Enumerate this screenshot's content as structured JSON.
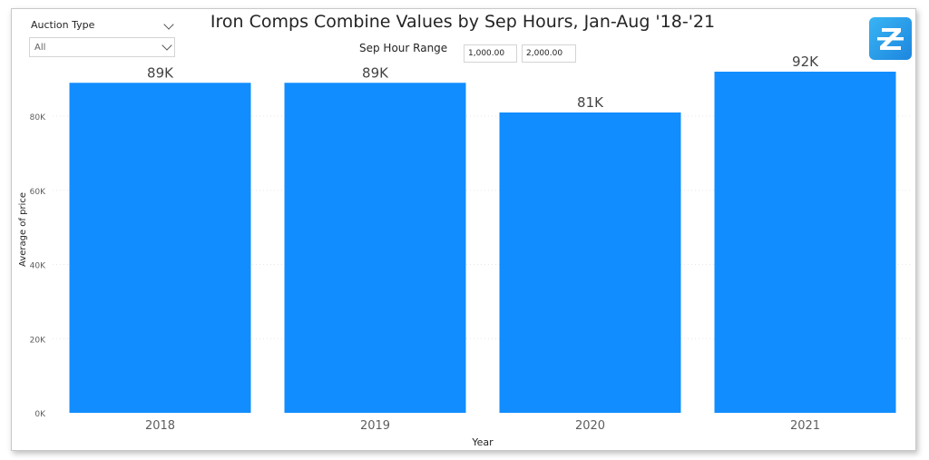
{
  "slicer": {
    "title": "Auction Type",
    "selected": "All"
  },
  "range": {
    "label": "Sep Hour Range",
    "min": "1,000.00",
    "max": "2,000.00"
  },
  "colors": {
    "bar": "#118dff",
    "text": "#252423",
    "axis_text": "#605e5c"
  },
  "icons": {
    "logo": "z-logo-icon",
    "dropdown": "chevron-down-icon"
  },
  "chart_data": {
    "type": "bar",
    "title": "Iron Comps Combine Values by Sep Hours, Jan-Aug '18-'21",
    "xlabel": "Year",
    "ylabel": "Average of price",
    "categories": [
      "2018",
      "2019",
      "2020",
      "2021"
    ],
    "values": [
      89000,
      89000,
      81000,
      92000
    ],
    "data_labels": [
      "89K",
      "89K",
      "81K",
      "92K"
    ],
    "y_ticks": [
      0,
      20000,
      40000,
      60000,
      80000
    ],
    "y_tick_labels": [
      "0K",
      "20K",
      "40K",
      "60K",
      "80K"
    ],
    "ylim": [
      0,
      92000
    ],
    "grid": true,
    "legend": "none"
  }
}
